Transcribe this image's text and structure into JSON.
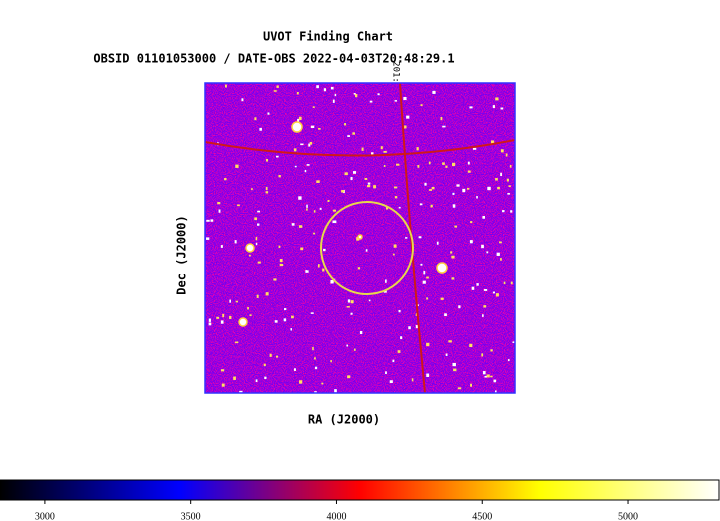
{
  "chart_data": {
    "type": "image",
    "title": "UVOT Finding Chart",
    "subtitle": "OBSID 01101053000 / DATE-OBS 2022-04-03T20:48:29.1",
    "x_label": "RA (J2000)",
    "y_label": "Dec (J2000)",
    "grid_label": "201:",
    "region_color": "#e8d84a",
    "grid_color": "#d01818",
    "colorbar": {
      "xlim": [
        2846,
        5312
      ],
      "xticks": [
        3000,
        3500,
        4000,
        4500,
        5000
      ],
      "colormap": [
        "#000000",
        "#0000ff",
        "#ff0000",
        "#ffff00",
        "#ffffff"
      ]
    }
  }
}
